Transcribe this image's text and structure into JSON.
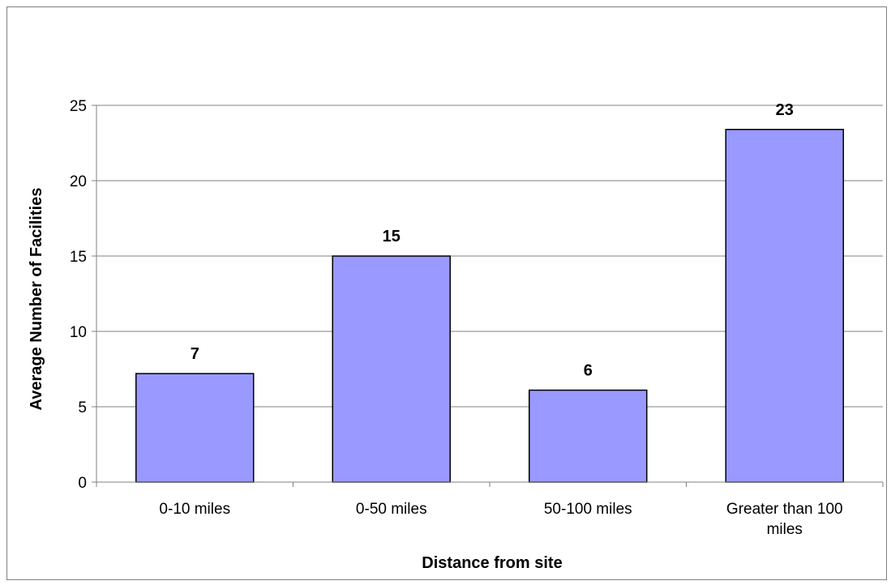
{
  "chart_data": {
    "type": "bar",
    "categories": [
      "0-10 miles",
      "0-50 miles",
      "50-100 miles",
      "Greater than 100 miles"
    ],
    "category_lines": [
      [
        "0-10 miles"
      ],
      [
        "0-50 miles"
      ],
      [
        "50-100 miles"
      ],
      [
        "Greater than 100",
        "miles"
      ]
    ],
    "values": [
      7.2,
      15.0,
      6.1,
      23.4
    ],
    "data_labels": [
      "7",
      "15",
      "6",
      "23"
    ],
    "xlabel": "Distance from site",
    "ylabel": "Average Number of Facilities",
    "ylim": [
      0,
      25
    ],
    "yticks": [
      0,
      5,
      10,
      15,
      20,
      25
    ],
    "grid": true,
    "legend": "none",
    "colors": {
      "bar_fill": "#9999ff",
      "bar_stroke": "#000000",
      "grid": "#808080",
      "axis": "#808080",
      "text": "#000000"
    }
  }
}
